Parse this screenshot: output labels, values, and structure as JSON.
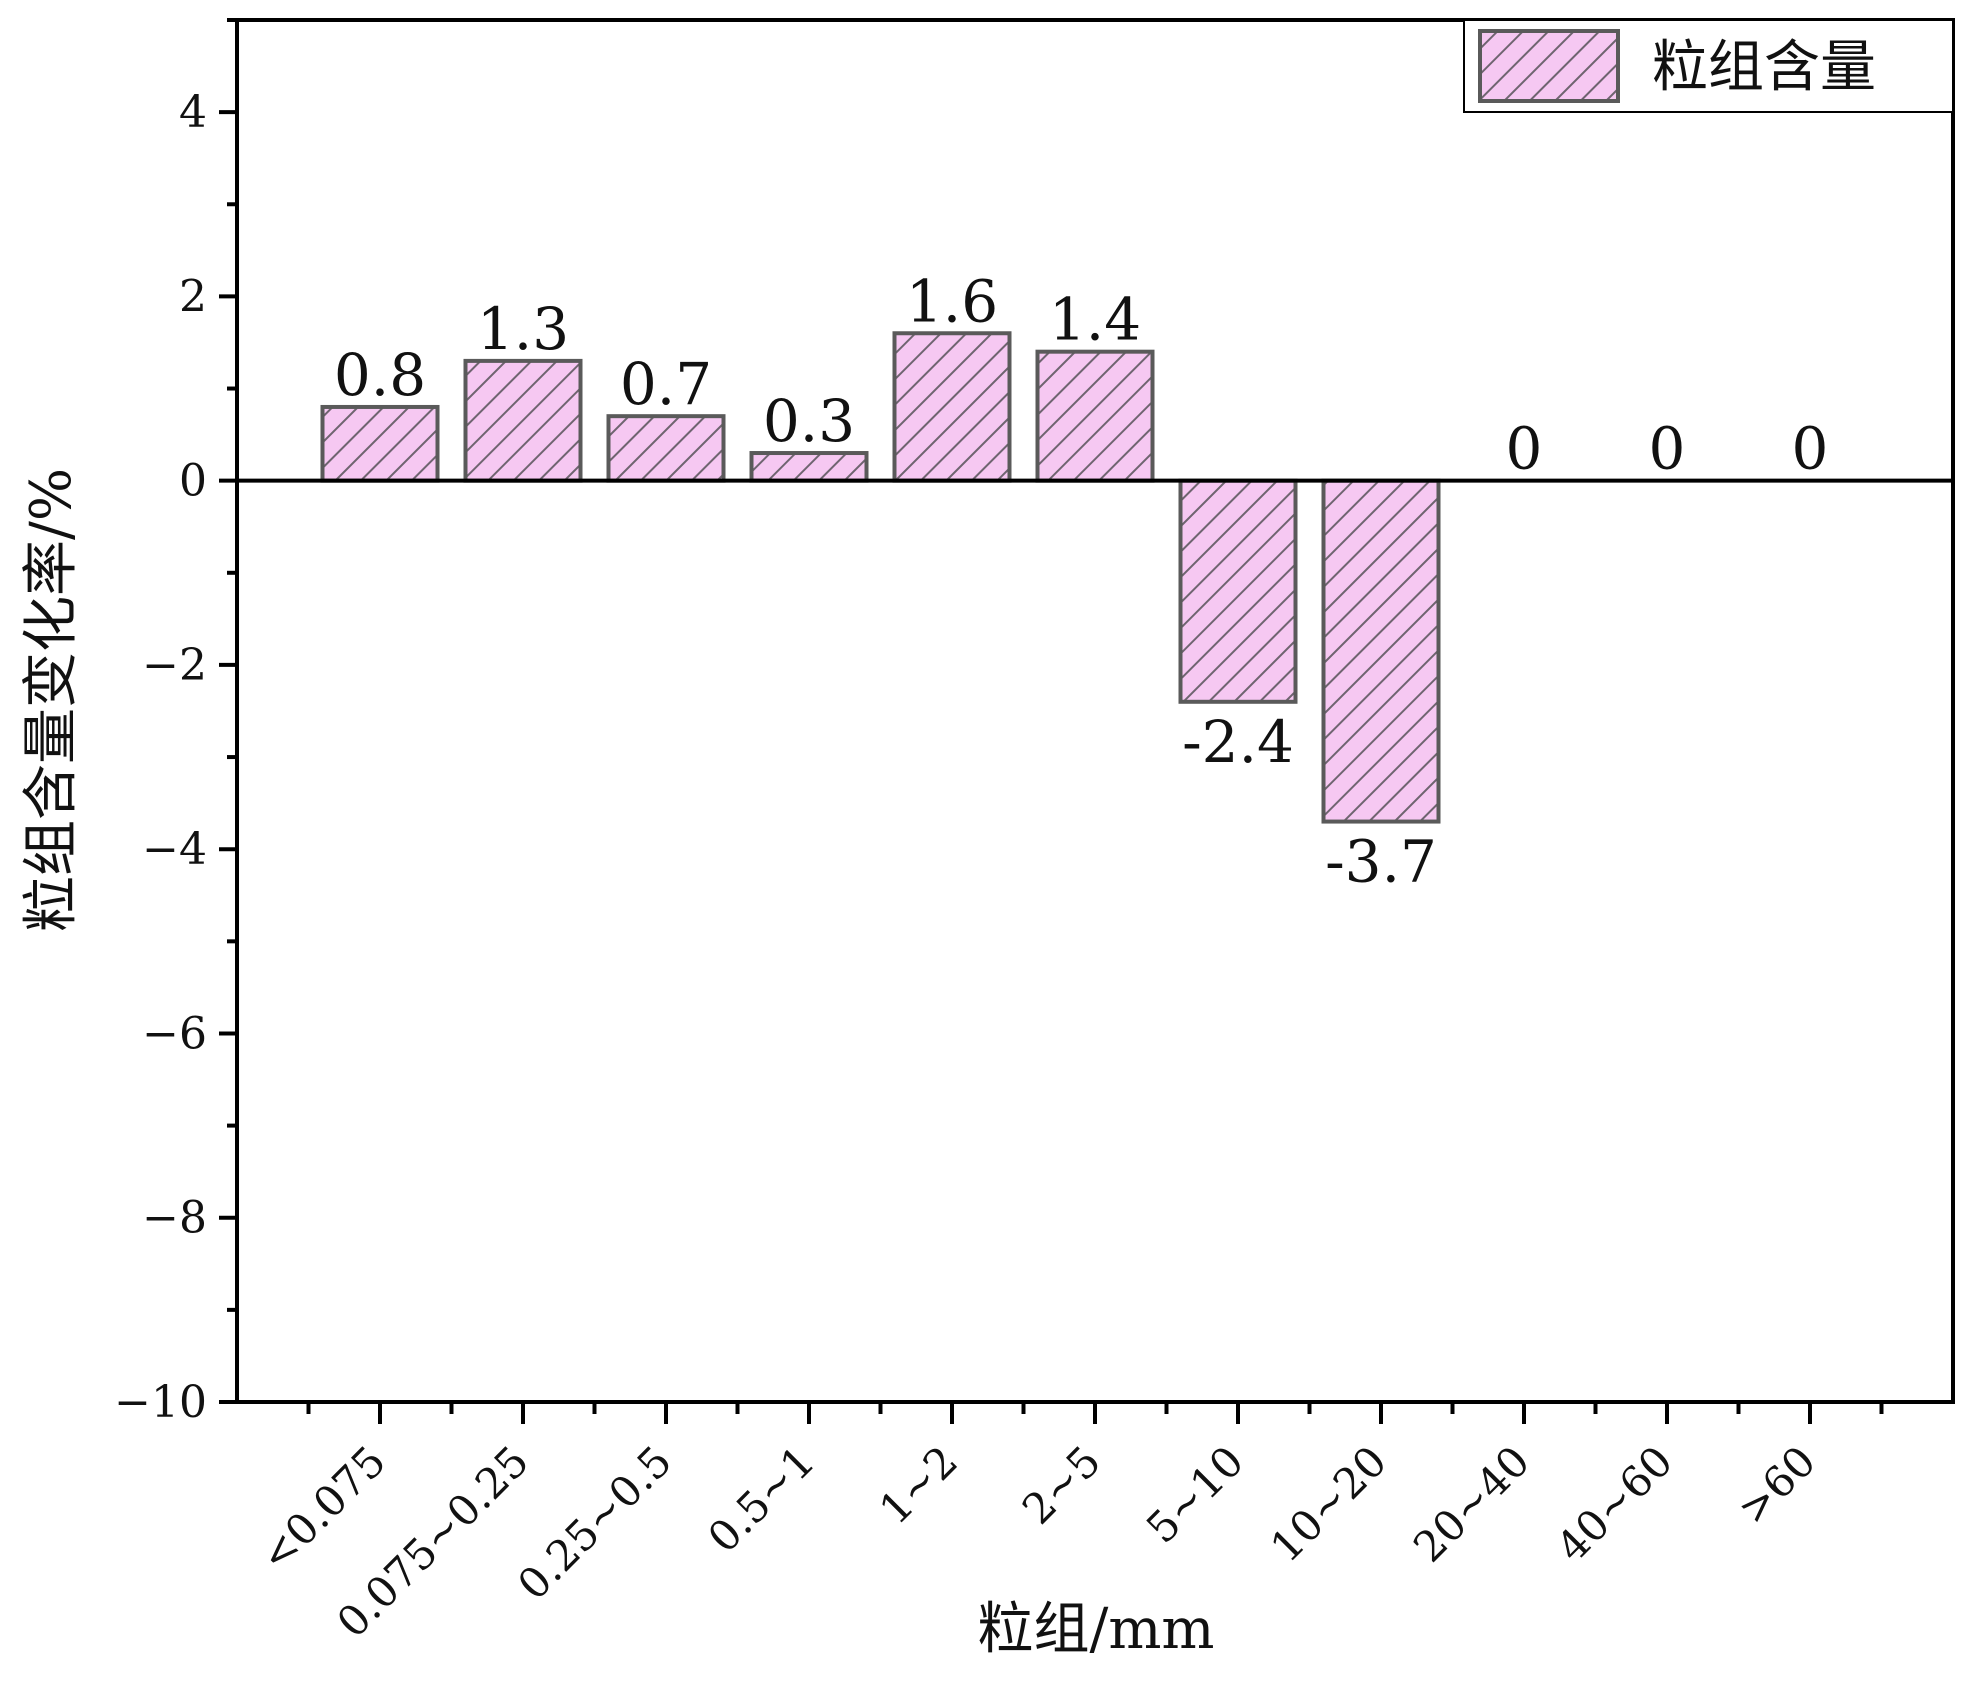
{
  "chart_data": {
    "type": "bar",
    "title": "",
    "xlabel": "粒组/mm",
    "ylabel": "粒组含量变化率/%",
    "categories": [
      "<0.075",
      "0.075~0.25",
      "0.25~0.5",
      "0.5~1",
      "1~2",
      "2~5",
      "5~10",
      "10~20",
      "20~40",
      "40~60",
      ">60"
    ],
    "series": [
      {
        "name": "粒组含量",
        "values": [
          0.8,
          1.3,
          0.7,
          0.3,
          1.6,
          1.4,
          -2.4,
          -3.7,
          0,
          0,
          0
        ]
      }
    ],
    "data_labels": [
      "0.8",
      "1.3",
      "0.7",
      "0.3",
      "1.6",
      "1.4",
      "-2.4",
      "-3.7",
      "0",
      "0",
      "0"
    ],
    "ylim": [
      -10,
      5
    ],
    "yticks": [
      -10,
      -8,
      -6,
      -4,
      -2,
      0,
      2,
      4
    ],
    "grid": false,
    "legend_position": "top-right",
    "bar_fill_color": "#f6c8f2",
    "bar_hatch_color": "#6f6470",
    "bar_edge_color": "#5a5a5a",
    "zero_line": true
  }
}
